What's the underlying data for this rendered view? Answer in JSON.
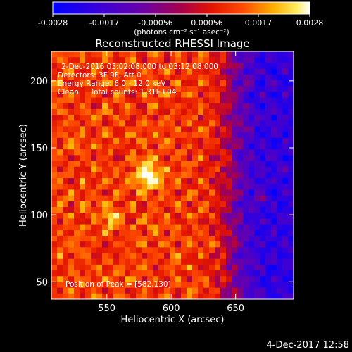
{
  "colorbar": {
    "ticks": [
      "-0.0028",
      "-0.0017",
      "-0.00056",
      "0.00056",
      "0.0017",
      "0.0028"
    ],
    "unit_label": "(photons cm⁻² s⁻¹ asec⁻²)",
    "min": -0.0028,
    "max": 0.0028
  },
  "chart_data": {
    "type": "heatmap",
    "title": "Reconstructed RHESSI Image",
    "xlabel": "Heliocentric X (arcsec)",
    "ylabel": "Heliocentric Y (arcsec)",
    "xlim": [
      507,
      695
    ],
    "ylim": [
      37,
      222
    ],
    "x_ticks": [
      "550",
      "600",
      "650"
    ],
    "y_ticks": [
      "50",
      "100",
      "150",
      "200"
    ],
    "info_lines": [
      "2-Dec-2016 03:02:08.000 to 03:12:08.000",
      "Detectors: 3F 9F, Att 0",
      "Energy Range: 6.0 - 12.0 keV",
      "Clean     Total counts: 1.31E+04"
    ],
    "peak_label": "Position of Peak = [582,130]",
    "peak_position": [
      582,
      130
    ],
    "colormap": "blue-purple-red-yellow-white"
  },
  "footer": {
    "timestamp": "4-Dec-2017 12:58"
  }
}
